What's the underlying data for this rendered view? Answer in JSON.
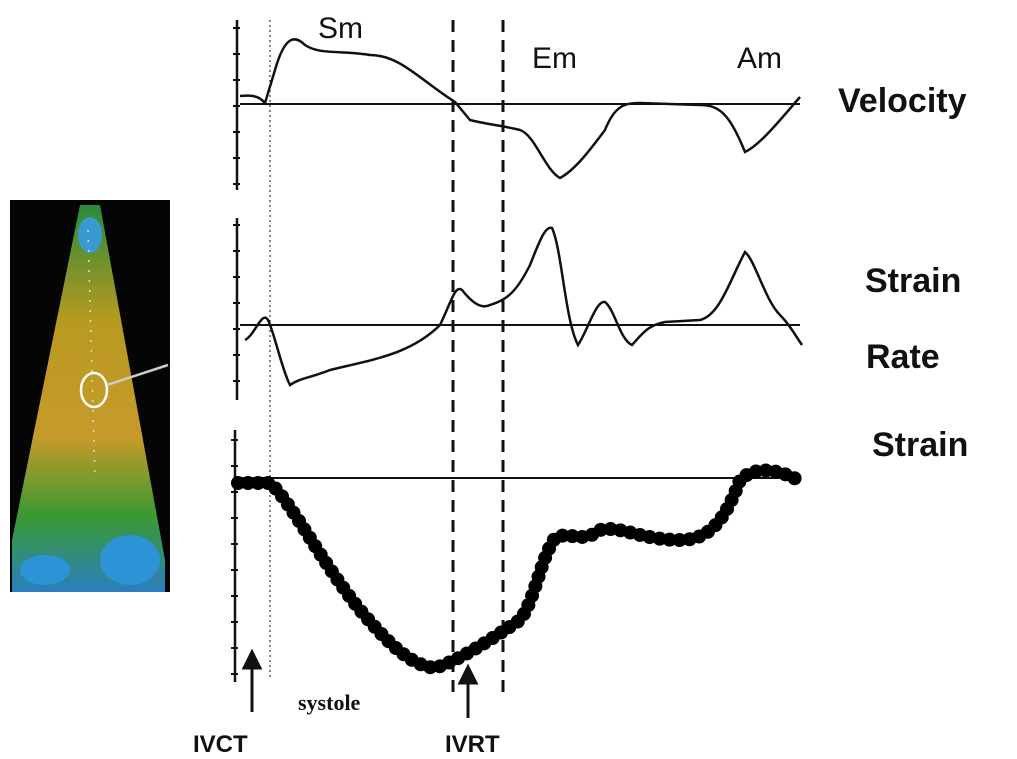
{
  "labels": {
    "sm": "Sm",
    "em": "Em",
    "am": "Am",
    "velocity": "Velocity",
    "strain_rate_1": "Strain",
    "strain_rate_2": "Rate",
    "strain": "Strain",
    "systole": "systole",
    "ivct": "IVCT",
    "ivrt": "IVRT"
  }
}
